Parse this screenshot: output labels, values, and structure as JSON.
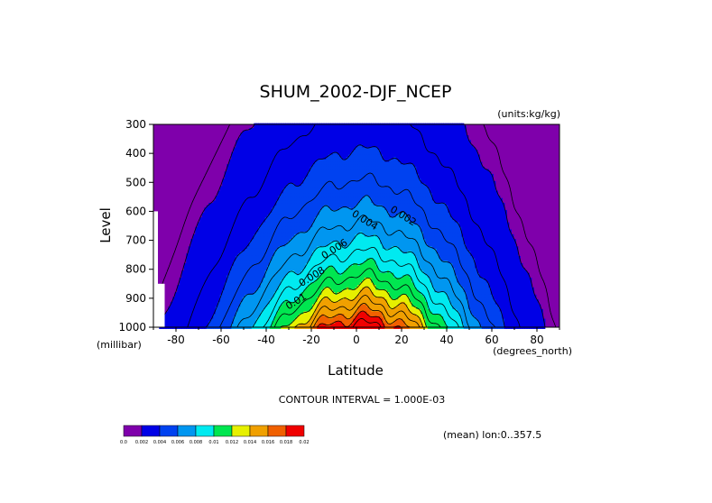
{
  "chart_data": {
    "type": "contour",
    "title": "SHUM_2002-DJF_NCEP",
    "units_label": "(units:kg/kg)",
    "xlabel": "Latitude",
    "ylabel": "Level",
    "x_unit_label": "(degrees_north)",
    "y_unit_label": "(millibar)",
    "xlim": [
      -90,
      90
    ],
    "ylim": [
      1000,
      300
    ],
    "x_ticks": [
      -80,
      -60,
      -40,
      -20,
      0,
      20,
      40,
      60,
      80
    ],
    "y_ticks": [
      300,
      400,
      500,
      600,
      700,
      800,
      900,
      1000
    ],
    "contour_interval_label": "CONTOUR INTERVAL = 1.000E-03",
    "mean_label": "(mean) lon:0..357.5",
    "contour_labels": [
      {
        "text": "0.002",
        "lat": 20,
        "level": 625
      },
      {
        "text": "0.004",
        "lat": 3,
        "level": 640
      },
      {
        "text": "0.006",
        "lat": -9,
        "level": 740
      },
      {
        "text": "0.008",
        "lat": -19,
        "level": 835
      },
      {
        "text": "0.01",
        "lat": -26,
        "level": 920
      }
    ],
    "colorbar": {
      "colors": [
        "#7f00ab",
        "#0000e6",
        "#0042f0",
        "#0096f0",
        "#00eaf0",
        "#00e650",
        "#e6f000",
        "#f0a000",
        "#f06000",
        "#f00000"
      ],
      "tick_labels": [
        "0.0",
        "0.002",
        "0.004",
        "0.006",
        "0.008",
        "0.01",
        "0.012",
        "0.014",
        "0.016",
        "0.018",
        "0.02"
      ]
    },
    "level_colors": [
      "#7f00ab",
      "#0000e6",
      "#0000e6",
      "#0042f0",
      "#0042f0",
      "#0096f0",
      "#0096f0",
      "#00eaf0",
      "#00eaf0",
      "#00e650",
      "#00e650",
      "#e6f000",
      "#f0a000",
      "#f0a000",
      "#f06000",
      "#f00000"
    ],
    "field": {
      "peak_value": 0.0165,
      "peak_lat": 3,
      "scale_lat_south": 38,
      "scale_lat_north": 34,
      "scale_height": 360,
      "low_bound_lat": -76,
      "outer_threshold": 0.0007
    },
    "missing_region": [
      {
        "lat": [
          -90,
          -88
        ],
        "level": [
          600,
          1000
        ]
      },
      {
        "lat": [
          -88,
          -85
        ],
        "level": [
          850,
          1000
        ]
      }
    ]
  }
}
